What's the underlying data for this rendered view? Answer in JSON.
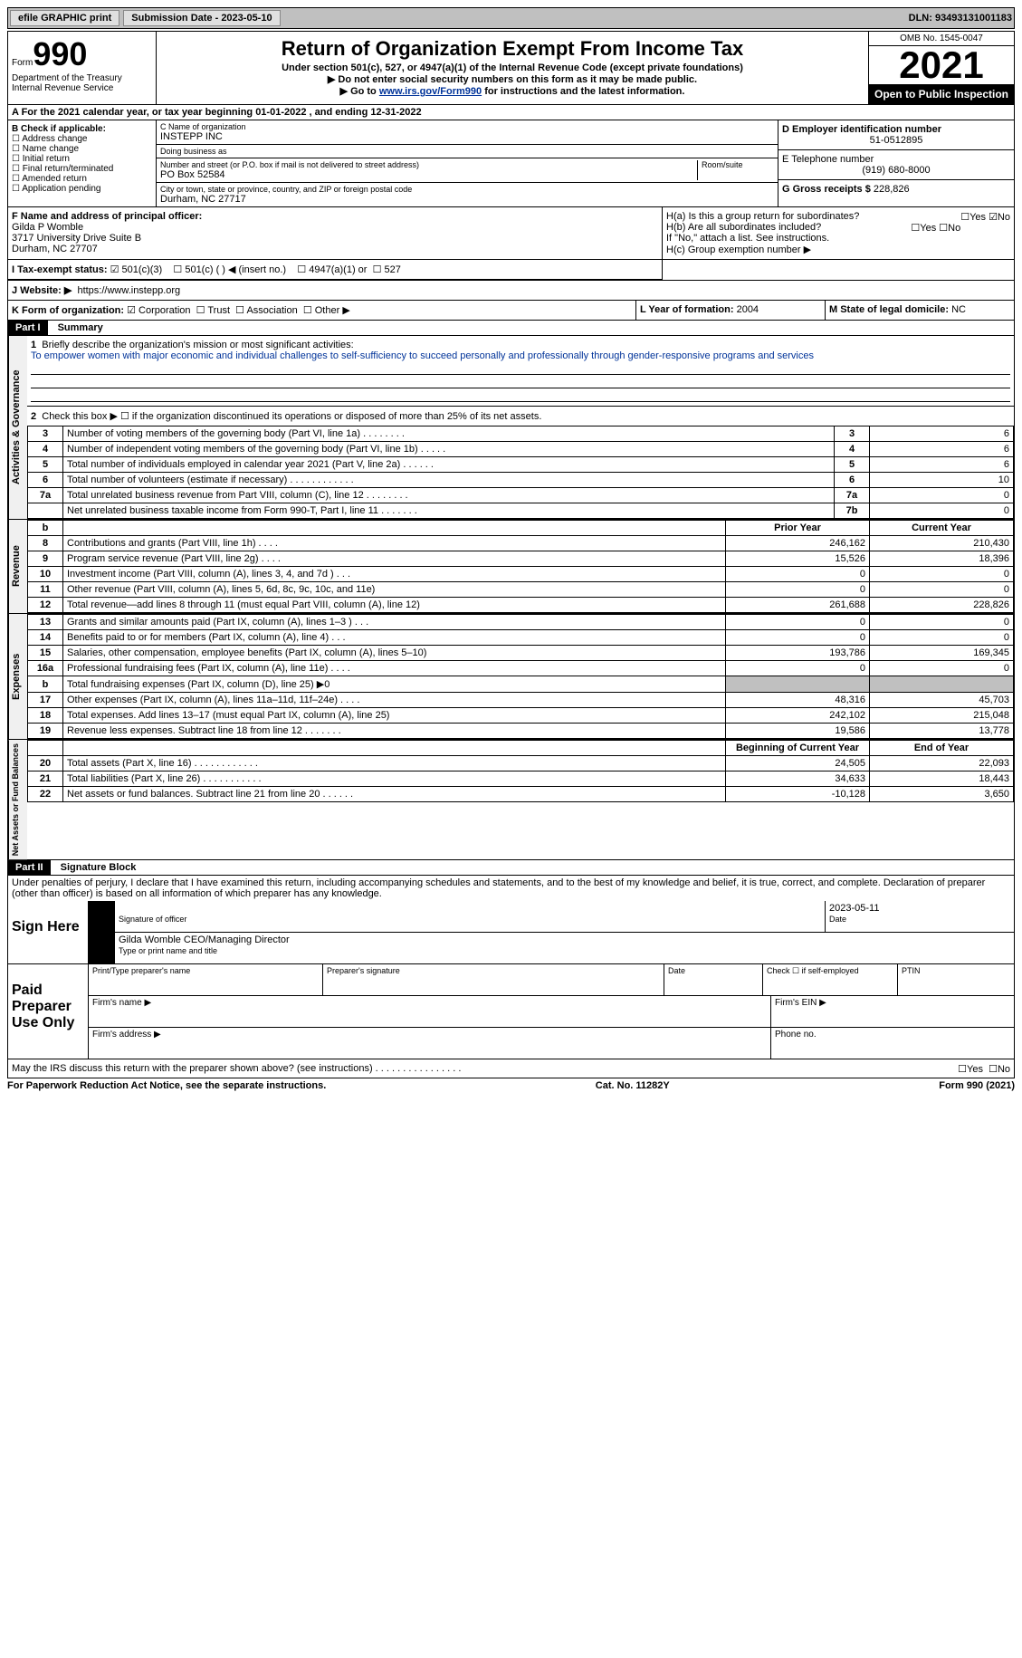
{
  "top": {
    "efile": "efile GRAPHIC print",
    "submission": "Submission Date - 2023-05-10",
    "dln": "DLN: 93493131001183"
  },
  "header": {
    "form_label": "Form",
    "form_num": "990",
    "dept": "Department of the Treasury Internal Revenue Service",
    "title": "Return of Organization Exempt From Income Tax",
    "sub1": "Under section 501(c), 527, or 4947(a)(1) of the Internal Revenue Code (except private foundations)",
    "sub2": "▶ Do not enter social security numbers on this form as it may be made public.",
    "sub3_pre": "▶ Go to ",
    "sub3_link": "www.irs.gov/Form990",
    "sub3_post": " for instructions and the latest information.",
    "omb": "OMB No. 1545-0047",
    "year": "2021",
    "inspect": "Open to Public Inspection"
  },
  "a": "A  For the 2021 calendar year, or tax year beginning 01-01-2022     , and ending 12-31-2022",
  "b": {
    "label": "B Check if applicable:",
    "opts": [
      "Address change",
      "Name change",
      "Initial return",
      "Final return/terminated",
      "Amended return",
      "Application pending"
    ]
  },
  "c": {
    "name_label": "C Name of organization",
    "name": "INSTEPP INC",
    "dba_label": "Doing business as",
    "dba": "",
    "addr_label": "Number and street (or P.O. box if mail is not delivered to street address)",
    "room_label": "Room/suite",
    "addr": "PO Box 52584",
    "city_label": "City or town, state or province, country, and ZIP or foreign postal code",
    "city": "Durham, NC  27717"
  },
  "d": {
    "ein_label": "D Employer identification number",
    "ein": "51-0512895",
    "phone_label": "E Telephone number",
    "phone": "(919) 680-8000",
    "gross_label": "G Gross receipts $",
    "gross": "228,826"
  },
  "f": {
    "label": "F Name and address of principal officer:",
    "name": "Gilda P Womble",
    "addr": "3717 University Drive Suite B",
    "city": "Durham, NC  27707"
  },
  "h": {
    "a": "H(a)  Is this a group return for subordinates?",
    "b": "H(b)  Are all subordinates included?",
    "b_note": "If \"No,\" attach a list. See instructions.",
    "c": "H(c)  Group exemption number ▶"
  },
  "i": {
    "label": "I  Tax-exempt status:",
    "o1": "501(c)(3)",
    "o2": "501(c) (  ) ◀ (insert no.)",
    "o3": "4947(a)(1) or",
    "o4": "527"
  },
  "j": {
    "label": "J  Website: ▶",
    "url": "https://www.instepp.org"
  },
  "k": {
    "label": "K Form of organization:",
    "o1": "Corporation",
    "o2": "Trust",
    "o3": "Association",
    "o4": "Other ▶"
  },
  "l": {
    "label": "L Year of formation:",
    "val": "2004"
  },
  "m": {
    "label": "M State of legal domicile:",
    "val": "NC"
  },
  "part1": {
    "header": "Part I",
    "title": "Summary",
    "mission_label": "Briefly describe the organization's mission or most significant activities:",
    "mission": "To empower women with major economic and individual challenges to self-sufficiency to succeed personally and professionally through gender-responsive programs and services",
    "line2": "Check this box ▶ ☐  if the organization discontinued its operations or disposed of more than 25% of its net assets.",
    "rows_a": [
      {
        "n": "3",
        "d": "Number of voting members of the governing body (Part VI, line 1a)   .    .    .    .    .    .    .    .",
        "b": "3",
        "v": "6"
      },
      {
        "n": "4",
        "d": "Number of independent voting members of the governing body (Part VI, line 1b)   .    .    .    .    .",
        "b": "4",
        "v": "6"
      },
      {
        "n": "5",
        "d": "Total number of individuals employed in calendar year 2021 (Part V, line 2a)   .    .    .    .    .    .",
        "b": "5",
        "v": "6"
      },
      {
        "n": "6",
        "d": "Total number of volunteers (estimate if necessary)    .    .    .    .    .    .    .    .    .    .    .    .",
        "b": "6",
        "v": "10"
      },
      {
        "n": "7a",
        "d": "Total unrelated business revenue from Part VIII, column (C), line 12   .    .    .    .    .    .    .    .",
        "b": "7a",
        "v": "0"
      },
      {
        "n": "",
        "d": "Net unrelated business taxable income from Form 990-T, Part I, line 11   .    .    .    .    .    .    .",
        "b": "7b",
        "v": "0"
      }
    ],
    "col_prior": "Prior Year",
    "col_current": "Current Year",
    "rows_rev": [
      {
        "n": "8",
        "d": "Contributions and grants (Part VIII, line 1h)    .    .    .    .",
        "p": "246,162",
        "c": "210,430"
      },
      {
        "n": "9",
        "d": "Program service revenue (Part VIII, line 2g)    .    .    .    .",
        "p": "15,526",
        "c": "18,396"
      },
      {
        "n": "10",
        "d": "Investment income (Part VIII, column (A), lines 3, 4, and 7d )    .    .    .",
        "p": "0",
        "c": "0"
      },
      {
        "n": "11",
        "d": "Other revenue (Part VIII, column (A), lines 5, 6d, 8c, 9c, 10c, and 11e)",
        "p": "0",
        "c": "0"
      },
      {
        "n": "12",
        "d": "Total revenue—add lines 8 through 11 (must equal Part VIII, column (A), line 12)",
        "p": "261,688",
        "c": "228,826"
      }
    ],
    "rows_exp": [
      {
        "n": "13",
        "d": "Grants and similar amounts paid (Part IX, column (A), lines 1–3 )   .    .    .",
        "p": "0",
        "c": "0"
      },
      {
        "n": "14",
        "d": "Benefits paid to or for members (Part IX, column (A), line 4)   .    .    .",
        "p": "0",
        "c": "0"
      },
      {
        "n": "15",
        "d": "Salaries, other compensation, employee benefits (Part IX, column (A), lines 5–10)",
        "p": "193,786",
        "c": "169,345"
      },
      {
        "n": "16a",
        "d": "Professional fundraising fees (Part IX, column (A), line 11e)   .    .    .    .",
        "p": "0",
        "c": "0"
      },
      {
        "n": "b",
        "d": "Total fundraising expenses (Part IX, column (D), line 25) ▶0",
        "p": "",
        "c": "",
        "shade": true
      },
      {
        "n": "17",
        "d": "Other expenses (Part IX, column (A), lines 11a–11d, 11f–24e)    .    .    .    .",
        "p": "48,316",
        "c": "45,703"
      },
      {
        "n": "18",
        "d": "Total expenses. Add lines 13–17 (must equal Part IX, column (A), line 25)",
        "p": "242,102",
        "c": "215,048"
      },
      {
        "n": "19",
        "d": "Revenue less expenses. Subtract line 18 from line 12   .    .    .    .    .    .    .",
        "p": "19,586",
        "c": "13,778"
      }
    ],
    "col_begin": "Beginning of Current Year",
    "col_end": "End of Year",
    "rows_net": [
      {
        "n": "20",
        "d": "Total assets (Part X, line 16)   .    .    .    .    .    .    .    .    .    .    .    .",
        "p": "24,505",
        "c": "22,093"
      },
      {
        "n": "21",
        "d": "Total liabilities (Part X, line 26)   .    .    .    .    .    .    .    .    .    .    .",
        "p": "34,633",
        "c": "18,443"
      },
      {
        "n": "22",
        "d": "Net assets or fund balances. Subtract line 21 from line 20   .    .    .    .    .    .",
        "p": "-10,128",
        "c": "3,650"
      }
    ]
  },
  "part2": {
    "header": "Part II",
    "title": "Signature Block",
    "decl": "Under penalties of perjury, I declare that I have examined this return, including accompanying schedules and statements, and to the best of my knowledge and belief, it is true, correct, and complete. Declaration of preparer (other than officer) is based on all information of which preparer has any knowledge.",
    "sign_here": "Sign Here",
    "sig_officer": "Signature of officer",
    "sig_date": "2023-05-11",
    "date_label": "Date",
    "officer_name": "Gilda Womble  CEO/Managing Director",
    "officer_label": "Type or print name and title",
    "paid": "Paid Preparer Use Only",
    "prep_name": "Print/Type preparer's name",
    "prep_sig": "Preparer's signature",
    "self_emp": "Check ☐  if self-employed",
    "ptin": "PTIN",
    "firm_name": "Firm's name    ▶",
    "firm_ein": "Firm's EIN ▶",
    "firm_addr": "Firm's address ▶",
    "phone": "Phone no.",
    "discuss": "May the IRS discuss this return with the preparer shown above? (see instructions)    .    .    .    .    .    .    .    .    .    .    .    .    .    .    .    .",
    "yes": "Yes",
    "no": "No"
  },
  "footer": {
    "pra": "For Paperwork Reduction Act Notice, see the separate instructions.",
    "cat": "Cat. No. 11282Y",
    "form": "Form 990 (2021)"
  },
  "vtabs": {
    "gov": "Activities & Governance",
    "rev": "Revenue",
    "exp": "Expenses",
    "net": "Net Assets or Fund Balances"
  }
}
